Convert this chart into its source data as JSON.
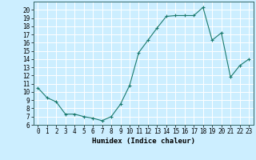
{
  "x": [
    0,
    1,
    2,
    3,
    4,
    5,
    6,
    7,
    8,
    9,
    10,
    11,
    12,
    13,
    14,
    15,
    16,
    17,
    18,
    19,
    20,
    21,
    22,
    23
  ],
  "y": [
    10.5,
    9.3,
    8.8,
    7.3,
    7.3,
    7.0,
    6.8,
    6.5,
    7.0,
    8.5,
    10.8,
    14.8,
    16.3,
    17.8,
    19.2,
    19.3,
    19.3,
    19.3,
    20.3,
    16.3,
    17.2,
    11.8,
    13.2,
    14.0
  ],
  "xlabel": "Humidex (Indice chaleur)",
  "line_color": "#1a7a6e",
  "bg_color": "#cceeff",
  "grid_color": "#ffffff",
  "inner_bg": "#cceeff",
  "ylim": [
    6,
    21
  ],
  "xlim": [
    -0.5,
    23.5
  ],
  "yticks": [
    6,
    7,
    8,
    9,
    10,
    11,
    12,
    13,
    14,
    15,
    16,
    17,
    18,
    19,
    20
  ],
  "xticks": [
    0,
    1,
    2,
    3,
    4,
    5,
    6,
    7,
    8,
    9,
    10,
    11,
    12,
    13,
    14,
    15,
    16,
    17,
    18,
    19,
    20,
    21,
    22,
    23
  ],
  "tick_fontsize": 5.5,
  "xlabel_fontsize": 6.5
}
